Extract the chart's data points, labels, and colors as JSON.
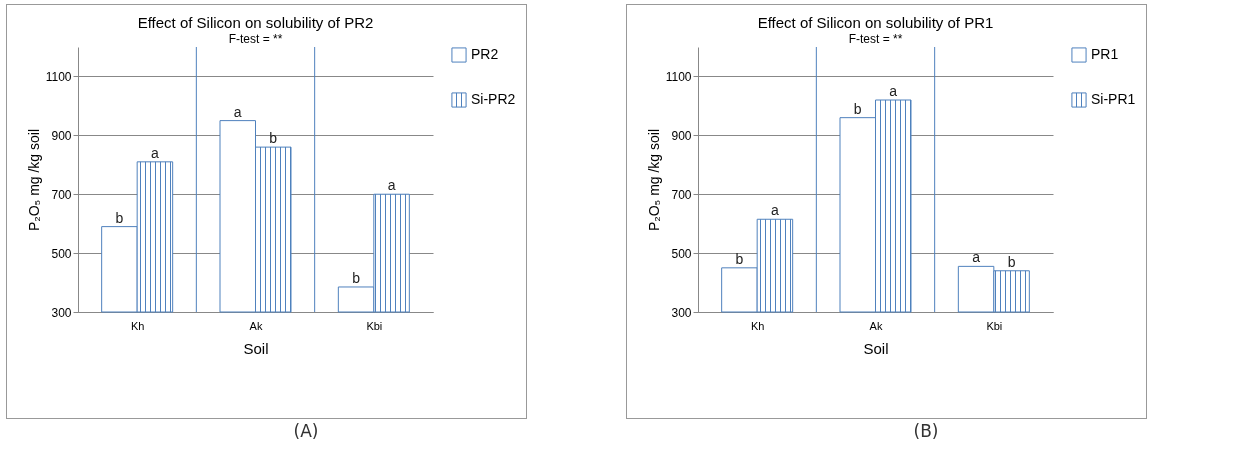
{
  "chart_data": [
    {
      "type": "bar",
      "title": "Effect of Silicon on  solubility of PR2",
      "xlabel": "Soil",
      "ylabel": "P₂O₅ mg /kg soil",
      "annotations": [
        "F-test = **",
        "(A)"
      ],
      "categories": [
        "Kh",
        "Ak",
        "Kbi"
      ],
      "series": [
        {
          "name": "PR2",
          "color": "#4f81bd",
          "values": [
            590,
            950,
            385
          ],
          "value_labels": [
            "b",
            "a",
            "b"
          ]
        },
        {
          "name": "Si-PR2",
          "color": "#4f81bd",
          "values": [
            810,
            860,
            700
          ],
          "value_labels": [
            "a",
            "b",
            "a"
          ]
        }
      ],
      "ylim": [
        300,
        1200
      ],
      "yticks": [
        300,
        500,
        700,
        900,
        1100
      ],
      "grid": true,
      "legend": "right"
    },
    {
      "type": "bar",
      "title": "Effect of Silicon on  solubility of PR1",
      "xlabel": "Soil",
      "ylabel": "P₂O₅ mg /kg soil",
      "annotations": [
        "F-test = **",
        "(B)"
      ],
      "categories": [
        "Kh",
        "Ak",
        "Kbi"
      ],
      "series": [
        {
          "name": "PR1",
          "color": "#4f81bd",
          "values": [
            450,
            960,
            455
          ],
          "value_labels": [
            "b",
            "b",
            "a"
          ]
        },
        {
          "name": "Si-PR1",
          "color": "#4f81bd",
          "values": [
            615,
            1020,
            440
          ],
          "value_labels": [
            "a",
            "a",
            "b"
          ]
        }
      ],
      "ylim": [
        300,
        1200
      ],
      "yticks": [
        300,
        500,
        700,
        900,
        1100
      ],
      "grid": true,
      "legend": "right"
    }
  ]
}
